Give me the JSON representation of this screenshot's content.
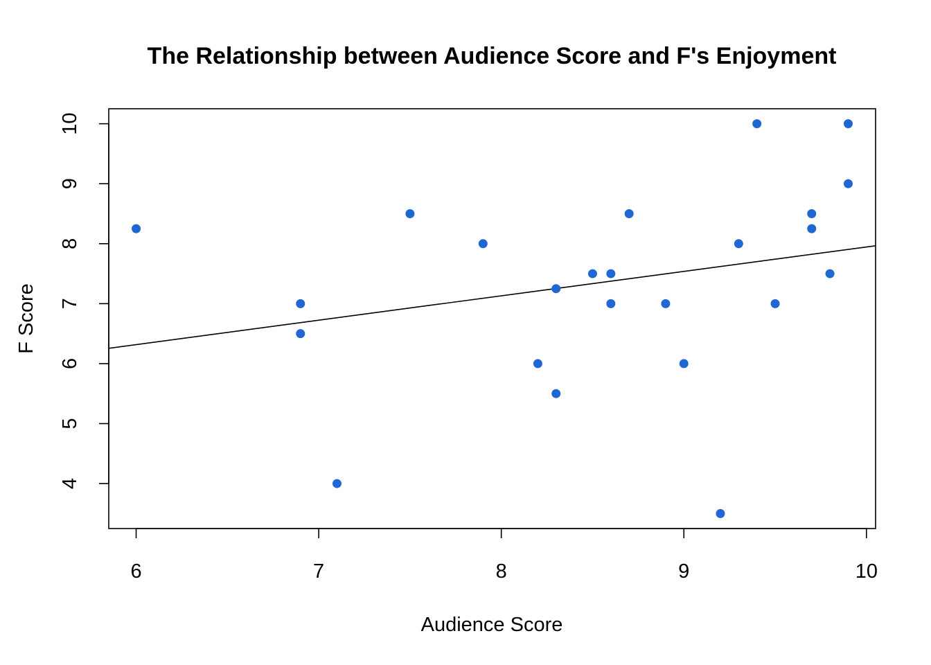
{
  "chart_data": {
    "type": "scatter",
    "title": "The Relationship between Audience Score and F's Enjoyment",
    "xlabel": "Audience Score",
    "ylabel": "F Score",
    "xlim": [
      5.85,
      10.05
    ],
    "ylim": [
      3.25,
      10.25
    ],
    "xticks": [
      6,
      7,
      8,
      9,
      10
    ],
    "yticks": [
      4,
      5,
      6,
      7,
      8,
      9,
      10
    ],
    "grid": false,
    "legend": "none",
    "point_color": "#1f67d2",
    "line_color": "#000000",
    "points": [
      {
        "x": 6.0,
        "y": 8.25
      },
      {
        "x": 6.9,
        "y": 7.0
      },
      {
        "x": 6.9,
        "y": 6.5
      },
      {
        "x": 7.1,
        "y": 4.0
      },
      {
        "x": 7.5,
        "y": 8.5
      },
      {
        "x": 7.9,
        "y": 8.0
      },
      {
        "x": 8.2,
        "y": 6.0
      },
      {
        "x": 8.3,
        "y": 7.25
      },
      {
        "x": 8.3,
        "y": 5.5
      },
      {
        "x": 8.5,
        "y": 7.5
      },
      {
        "x": 8.6,
        "y": 7.5
      },
      {
        "x": 8.6,
        "y": 7.0
      },
      {
        "x": 8.7,
        "y": 8.5
      },
      {
        "x": 8.9,
        "y": 7.0
      },
      {
        "x": 9.0,
        "y": 6.0
      },
      {
        "x": 9.2,
        "y": 3.5
      },
      {
        "x": 9.3,
        "y": 8.0
      },
      {
        "x": 9.4,
        "y": 10.0
      },
      {
        "x": 9.5,
        "y": 7.0
      },
      {
        "x": 9.7,
        "y": 8.5
      },
      {
        "x": 9.7,
        "y": 8.25
      },
      {
        "x": 9.8,
        "y": 7.5
      },
      {
        "x": 9.9,
        "y": 10.0
      },
      {
        "x": 9.9,
        "y": 9.0
      }
    ],
    "regression_line": {
      "intercept": 3.875,
      "slope": 0.407
    }
  }
}
